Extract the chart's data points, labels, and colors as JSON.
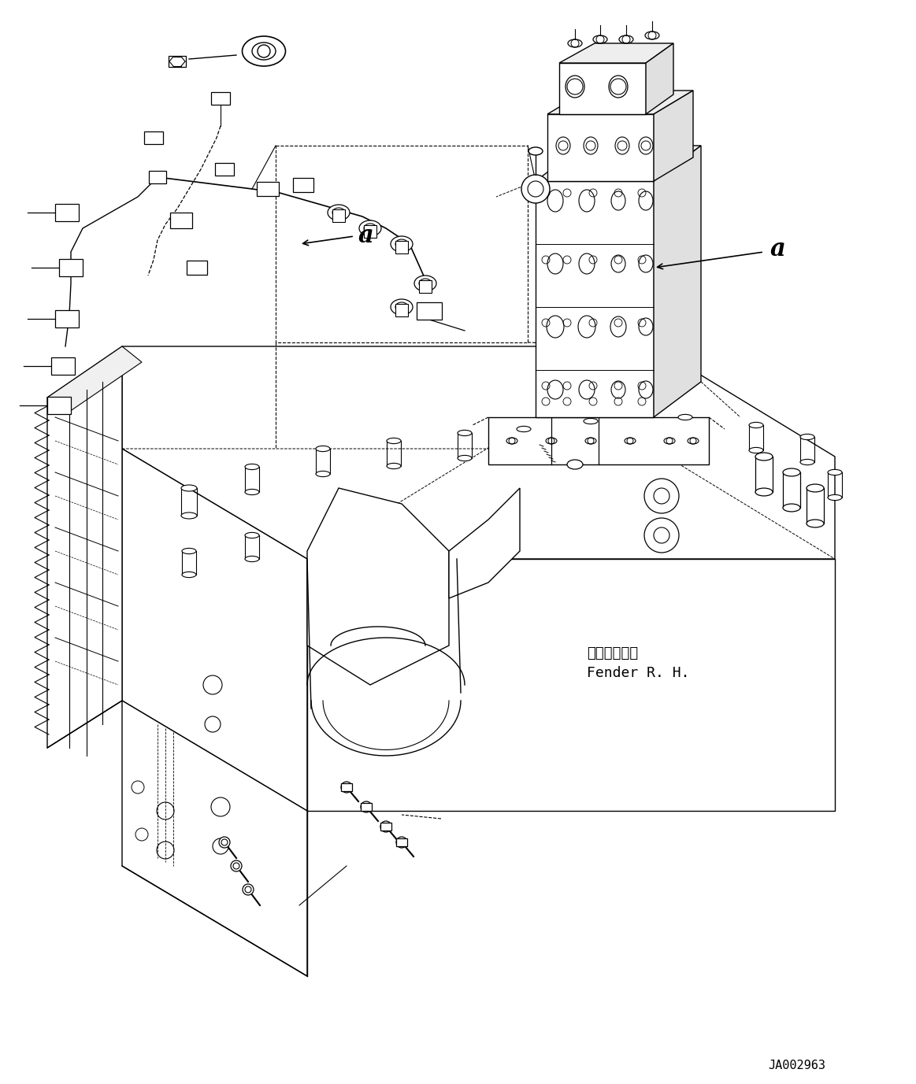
{
  "bg_color": "#ffffff",
  "lc": "#000000",
  "fig_width": 11.63,
  "fig_height": 13.77,
  "dpi": 100,
  "label_a": "a",
  "label_fender_jp": "フェンダ　右",
  "label_fender_en": "Fender R. H.",
  "label_code": "JA002963"
}
